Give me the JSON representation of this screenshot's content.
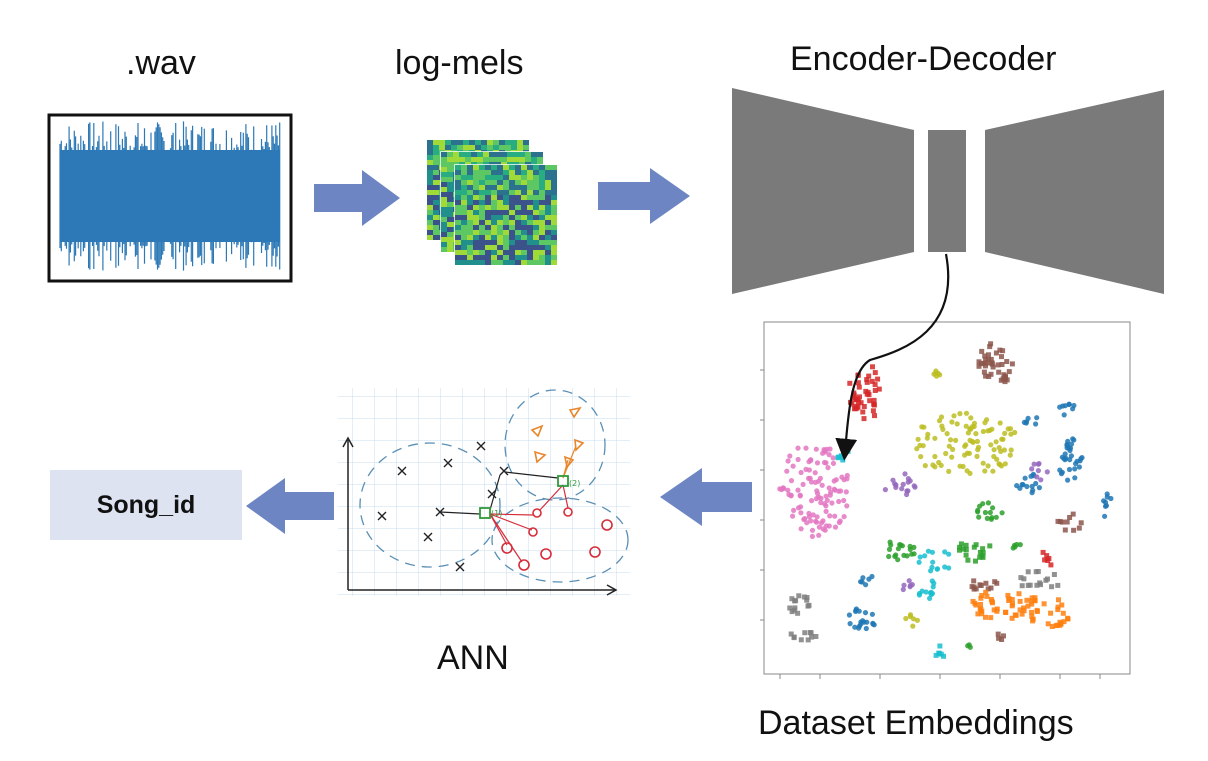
{
  "labels": {
    "wav": ".wav",
    "log_mels": "log-mels",
    "encoder_decoder": "Encoder-Decoder",
    "ann": "ANN",
    "dataset_embeddings": "Dataset Embeddings"
  },
  "output": {
    "song_id": "Song_id"
  },
  "colors": {
    "arrow": "#6d86c3",
    "waveform": "#2d79b7",
    "encoder": "#7a7a7a",
    "song_box_bg": "#dde3f0"
  },
  "icons": {
    "waveform": "waveform-icon",
    "spectrogram": "spectrogram-stack-icon",
    "encoder_decoder": "encoder-decoder-icon",
    "scatter": "embedding-scatter-icon",
    "ann_sketch": "ann-sketch-icon"
  },
  "ann_sketch_text": {
    "node1": "(1)",
    "node2": "(2)"
  }
}
